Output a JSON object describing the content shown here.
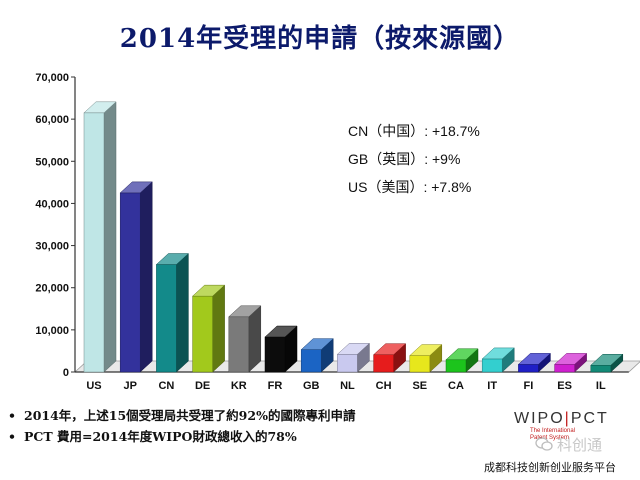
{
  "title_part1": "2014年受理的申請",
  "title_part2": "（按來源國）",
  "chart_data": {
    "type": "bar",
    "categories": [
      "US",
      "JP",
      "CN",
      "DE",
      "KR",
      "FR",
      "GB",
      "NL",
      "CH",
      "SE",
      "CA",
      "IT",
      "FI",
      "ES",
      "IL"
    ],
    "values": [
      61500,
      42500,
      25500,
      18000,
      13100,
      8300,
      5300,
      4200,
      4100,
      3900,
      2900,
      3100,
      1800,
      1800,
      1600
    ],
    "colors": [
      "#bfe6e6",
      "#33329c",
      "#138a8a",
      "#a2c91c",
      "#7a7a7a",
      "#0c0c0c",
      "#1b64c4",
      "#c9c9ef",
      "#e61c1c",
      "#e7e71c",
      "#1cc41c",
      "#33cfcf",
      "#1f1fc6",
      "#cf1fcf",
      "#138a77"
    ],
    "ylim": [
      0,
      70000
    ],
    "yticks": [
      "0",
      "10,000",
      "20,000",
      "30,000",
      "40,000",
      "50,000",
      "60,000",
      "70,000"
    ],
    "yticks_values": [
      0,
      10000,
      20000,
      30000,
      40000,
      50000,
      60000,
      70000
    ],
    "grid": false,
    "title": "2014年受理的申請（按來源國）"
  },
  "growth": [
    "CN（中国）: +18.7%",
    "GB（英国）: +9%",
    "US（美国）: +7.8%"
  ],
  "bullets": [
    "2014年，上述15個受理局共受理了約92%的國際專利申請",
    "PCT 費用=2014年度WIPO財政總收入的78%"
  ],
  "logo": {
    "wipo": "WIPO",
    "pct": "PCT",
    "sub1": "The International",
    "sub2": "Patent System"
  },
  "watermark": "科创通",
  "footer": "成都科技创新创业服务平台"
}
